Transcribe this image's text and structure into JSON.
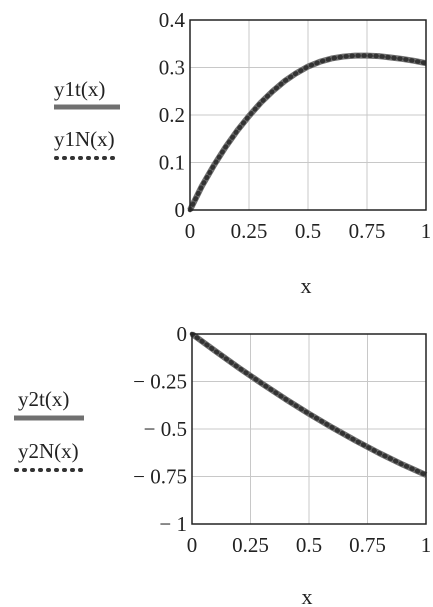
{
  "chart_data": [
    {
      "type": "line",
      "xlabel": "x",
      "xlim": [
        0,
        1
      ],
      "ylim": [
        0,
        0.4
      ],
      "x_ticks": [
        0,
        0.25,
        0.5,
        0.75,
        1
      ],
      "x_tick_labels": [
        "0",
        "0.25",
        "0.5",
        "0.75",
        "1"
      ],
      "y_ticks": [
        0,
        0.1,
        0.2,
        0.3,
        0.4
      ],
      "y_tick_labels": [
        "0",
        "0.1",
        "0.2",
        "0.3",
        "0.4"
      ],
      "grid": true,
      "legend_placement": "left",
      "series": [
        {
          "name": "y1t(x)",
          "style": "solid",
          "color": "#707070",
          "x": [
            0,
            0.05,
            0.1,
            0.15,
            0.2,
            0.25,
            0.3,
            0.35,
            0.4,
            0.45,
            0.5,
            0.55,
            0.6,
            0.65,
            0.7,
            0.75,
            0.8,
            0.85,
            0.9,
            0.95,
            1
          ],
          "y": [
            0,
            0.05,
            0.093,
            0.132,
            0.167,
            0.198,
            0.226,
            0.25,
            0.271,
            0.288,
            0.302,
            0.312,
            0.319,
            0.323,
            0.325,
            0.325,
            0.324,
            0.321,
            0.318,
            0.314,
            0.309
          ]
        },
        {
          "name": "y1N(x)",
          "style": "dotted",
          "color": "#333333",
          "x": [
            0,
            0.05,
            0.1,
            0.15,
            0.2,
            0.25,
            0.3,
            0.35,
            0.4,
            0.45,
            0.5,
            0.55,
            0.6,
            0.65,
            0.7,
            0.75,
            0.8,
            0.85,
            0.9,
            0.95,
            1
          ],
          "y": [
            0,
            0.05,
            0.093,
            0.132,
            0.167,
            0.198,
            0.226,
            0.25,
            0.271,
            0.288,
            0.302,
            0.312,
            0.319,
            0.323,
            0.325,
            0.325,
            0.324,
            0.321,
            0.318,
            0.314,
            0.309
          ]
        }
      ]
    },
    {
      "type": "line",
      "xlabel": "x",
      "xlim": [
        0,
        1
      ],
      "ylim": [
        -1,
        0
      ],
      "x_ticks": [
        0,
        0.25,
        0.5,
        0.75,
        1
      ],
      "x_tick_labels": [
        "0",
        "0.25",
        "0.5",
        "0.75",
        "1"
      ],
      "y_ticks": [
        0,
        -0.25,
        -0.5,
        -0.75,
        -1
      ],
      "y_tick_labels": [
        "0",
        "− 0.25",
        "− 0.5",
        "− 0.75",
        "− 1"
      ],
      "grid": true,
      "legend_placement": "left",
      "series": [
        {
          "name": "y2t(x)",
          "style": "solid",
          "color": "#707070",
          "x": [
            0,
            0.1,
            0.2,
            0.3,
            0.4,
            0.5,
            0.6,
            0.7,
            0.8,
            0.9,
            1
          ],
          "y": [
            0,
            -0.09,
            -0.178,
            -0.262,
            -0.343,
            -0.42,
            -0.493,
            -0.562,
            -0.627,
            -0.687,
            -0.742
          ]
        },
        {
          "name": "y2N(x)",
          "style": "dotted",
          "color": "#333333",
          "x": [
            0,
            0.1,
            0.2,
            0.3,
            0.4,
            0.5,
            0.6,
            0.7,
            0.8,
            0.9,
            1
          ],
          "y": [
            0,
            -0.09,
            -0.178,
            -0.262,
            -0.343,
            -0.42,
            -0.493,
            -0.562,
            -0.627,
            -0.687,
            -0.742
          ]
        }
      ]
    }
  ]
}
